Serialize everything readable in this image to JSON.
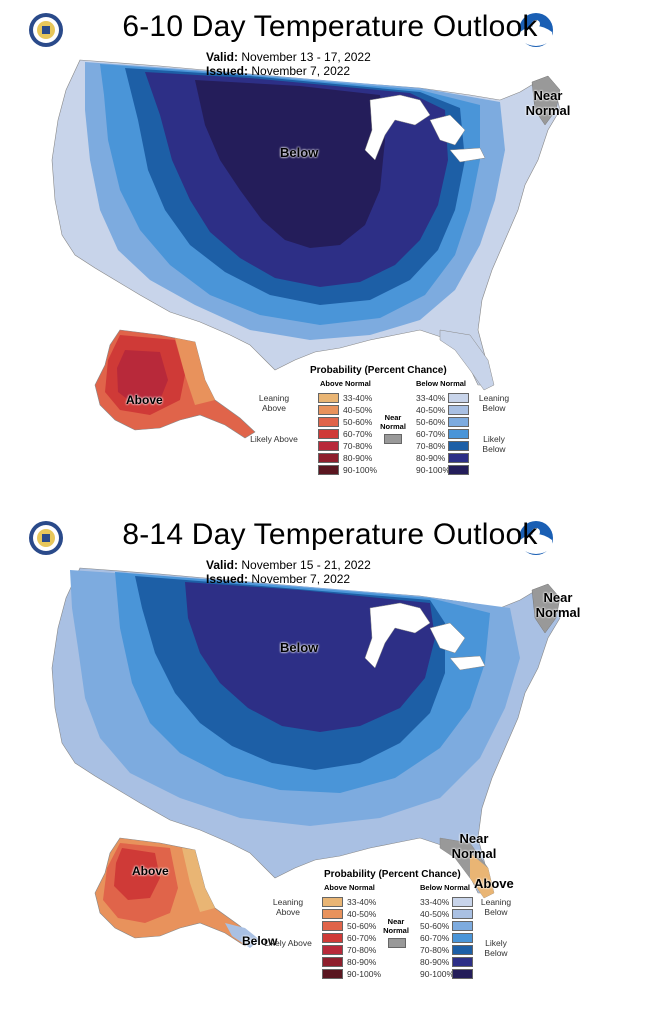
{
  "maps": [
    {
      "title": "6-10 Day Temperature Outlook",
      "valid_label": "Valid:",
      "valid_value": "November 13 - 17, 2022",
      "issued_label": "Issued:",
      "issued_value": "November 7, 2022",
      "region_labels": [
        "Below",
        "Near Normal",
        "Above"
      ],
      "legend_heading": "Probability (Percent Chance)"
    },
    {
      "title": "8-14 Day Temperature Outlook",
      "valid_label": "Valid:",
      "valid_value": "November 15 - 21, 2022",
      "issued_label": "Issued:",
      "issued_value": "November 7, 2022",
      "region_labels": [
        "Below",
        "Near Normal",
        "Near Normal",
        "Above",
        "Above",
        "Below"
      ],
      "legend_heading": "Probability (Percent Chance)"
    }
  ],
  "legend": {
    "above_header": "Above Normal",
    "below_header": "Below Normal",
    "near_label": "Near Normal",
    "leaning_above": "Leaning Above",
    "likely_above": "Likely Above",
    "leaning_below": "Leaning Below",
    "likely_below": "Likely Below",
    "ranges": [
      "33-40%",
      "40-50%",
      "50-60%",
      "60-70%",
      "70-80%",
      "80-90%",
      "90-100%"
    ],
    "above_colors": [
      "#e9b574",
      "#e8925c",
      "#e0644a",
      "#cf3a37",
      "#b8293a",
      "#8e1f2d",
      "#5a1620"
    ],
    "below_colors": [
      "#c8d4ea",
      "#a9c0e3",
      "#7dabdf",
      "#4a95d8",
      "#1d5fa6",
      "#2d2f86",
      "#241d5a"
    ],
    "near_color": "#999999"
  }
}
